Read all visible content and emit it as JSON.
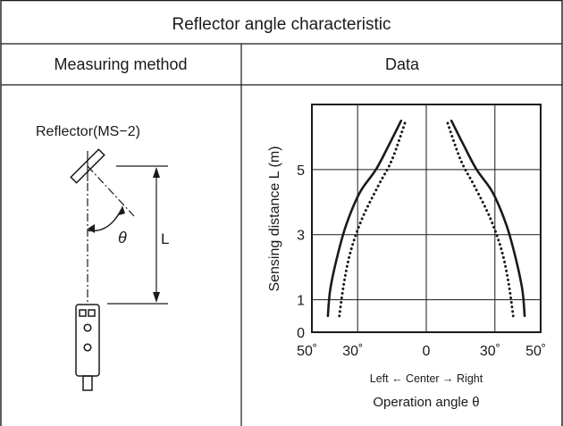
{
  "table": {
    "title": "Reflector angle characteristic",
    "col_left_header": "Measuring method",
    "col_right_header": "Data"
  },
  "method": {
    "reflector_label": "Reflector(MS−2)",
    "theta_label": "θ",
    "distance_label": "L"
  },
  "chart_data": {
    "type": "line",
    "title": "",
    "xlabel": "Operation angle θ",
    "xlabel_note": "Left ← Center → Right",
    "ylabel": "Sensing distance L (m)",
    "xlim": [
      -50,
      50
    ],
    "ylim": [
      0,
      7
    ],
    "x_ticks": [
      -50,
      -30,
      0,
      30,
      50
    ],
    "x_tick_labels": [
      "50゜",
      "30゜",
      "0",
      "30゜",
      "50゜"
    ],
    "y_ticks": [
      0,
      1,
      3,
      5
    ],
    "y_tick_labels": [
      "0",
      "1",
      "3",
      "5"
    ],
    "grid": true,
    "series": [
      {
        "style": "solid",
        "side": "left",
        "points": [
          [
            -43,
            0.5
          ],
          [
            -42,
            1.3
          ],
          [
            -39,
            2.3
          ],
          [
            -35,
            3.3
          ],
          [
            -29,
            4.3
          ],
          [
            -22,
            5.0
          ],
          [
            -16,
            5.8
          ],
          [
            -11,
            6.5
          ]
        ]
      },
      {
        "style": "dotted",
        "side": "left",
        "points": [
          [
            -38,
            0.5
          ],
          [
            -36,
            1.5
          ],
          [
            -33,
            2.5
          ],
          [
            -28,
            3.5
          ],
          [
            -21,
            4.5
          ],
          [
            -15,
            5.3
          ],
          [
            -9,
            6.5
          ]
        ]
      },
      {
        "style": "solid",
        "side": "right",
        "points": [
          [
            43,
            0.5
          ],
          [
            42,
            1.3
          ],
          [
            39,
            2.3
          ],
          [
            35,
            3.3
          ],
          [
            29,
            4.3
          ],
          [
            22,
            5.0
          ],
          [
            16,
            5.8
          ],
          [
            11,
            6.5
          ]
        ]
      },
      {
        "style": "dotted",
        "side": "right",
        "points": [
          [
            38,
            0.5
          ],
          [
            36,
            1.5
          ],
          [
            33,
            2.5
          ],
          [
            28,
            3.5
          ],
          [
            21,
            4.5
          ],
          [
            15,
            5.3
          ],
          [
            9,
            6.5
          ]
        ]
      }
    ]
  }
}
